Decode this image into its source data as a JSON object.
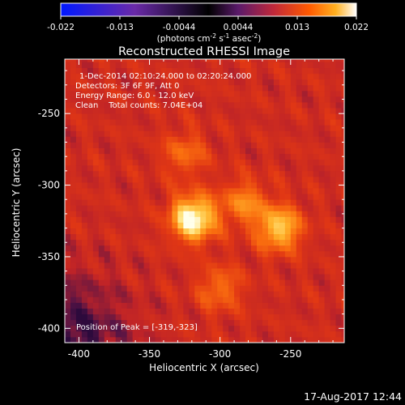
{
  "colorbar": {
    "ticks": [
      "-0.022",
      "-0.013",
      "-0.0044",
      "0.0044",
      "0.013",
      "0.022"
    ],
    "unit_prefix": "(photons cm",
    "unit_sup1": "-2",
    "unit_mid1": " s",
    "unit_sup2": "-1",
    "unit_mid2": " asec",
    "unit_sup3": "-2",
    "unit_suffix": ")",
    "colors": [
      "#0018ff",
      "#6a2aa8",
      "#000000",
      "#5a1a6a",
      "#c0283a",
      "#ff5a00",
      "#ffb020",
      "#ffffff"
    ]
  },
  "chart_data": {
    "type": "heatmap",
    "title": "Reconstructed RHESSI Image",
    "xlabel": "Heliocentric X (arcsec)",
    "ylabel": "Heliocentric Y (arcsec)",
    "xlim": [
      -410,
      -212
    ],
    "ylim": [
      -410,
      -212
    ],
    "xticks": [
      -400,
      -350,
      -300,
      -250
    ],
    "yticks": [
      -250,
      -300,
      -350,
      -400
    ],
    "annotations": [
      "1-Dec-2014 02:10:24.000 to 02:20:24.000",
      "Detectors: 3F 6F 9F, Att 0",
      "Energy Range: 6.0 - 12.0 keV",
      "Clean    Total counts: 7.04E+04"
    ],
    "peak_label": "Position of Peak = [-319,-323]",
    "sources": [
      {
        "x": -319,
        "y": -323,
        "amplitude": 1.0
      },
      {
        "x": -258,
        "y": -330,
        "amplitude": 0.72
      },
      {
        "x": -283,
        "y": -312,
        "amplitude": 0.45
      },
      {
        "x": -325,
        "y": -278,
        "amplitude": 0.35
      },
      {
        "x": -300,
        "y": -372,
        "amplitude": 0.38
      }
    ]
  },
  "footer": {
    "timestamp": "17-Aug-2017 12:44"
  }
}
